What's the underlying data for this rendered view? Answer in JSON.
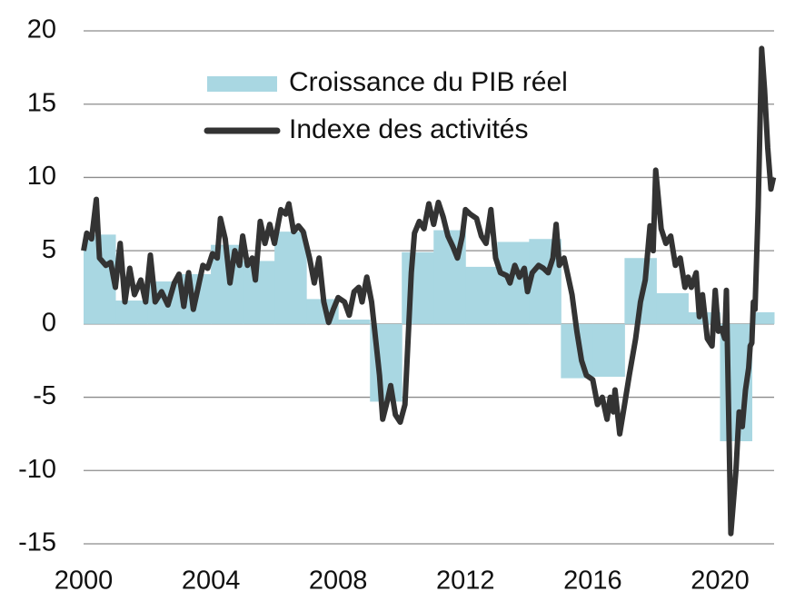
{
  "chart_data": {
    "type": "line",
    "xlim": [
      2000,
      2021.7
    ],
    "xticks": [
      2000,
      2004,
      2008,
      2012,
      2016,
      2020
    ],
    "ylim": [
      -15,
      20
    ],
    "yticks": [
      -15,
      -10,
      -5,
      0,
      5,
      10,
      15,
      20
    ],
    "grid": true,
    "legend": "top-left",
    "series": [
      {
        "name": "Croissance du PIB réel",
        "color": "#a9d7e2",
        "type": "step-area",
        "x": [
          2000,
          2001,
          2002,
          2003,
          2004,
          2005,
          2006,
          2007,
          2008,
          2009,
          2010,
          2011,
          2012,
          2013,
          2014,
          2015,
          2016,
          2017,
          2018,
          2019,
          2020,
          2021
        ],
        "values": [
          6.1,
          1.6,
          2.9,
          3.4,
          5.4,
          4.3,
          6.3,
          1.7,
          0.3,
          -5.3,
          4.9,
          6.4,
          3.9,
          5.6,
          5.8,
          -3.7,
          -3.6,
          4.5,
          2.1,
          0.8,
          -8.0,
          0.8
        ]
      },
      {
        "name": "Indexe des activités",
        "color": "#333333",
        "type": "line",
        "x": [
          2000.0,
          2000.1,
          2000.25,
          2000.4,
          2000.5,
          2000.7,
          2000.85,
          2001.0,
          2001.15,
          2001.3,
          2001.45,
          2001.6,
          2001.8,
          2001.95,
          2002.1,
          2002.25,
          2002.45,
          2002.65,
          2002.85,
          2003.0,
          2003.15,
          2003.3,
          2003.45,
          2003.6,
          2003.75,
          2003.9,
          2004.05,
          2004.2,
          2004.3,
          2004.45,
          2004.6,
          2004.75,
          2004.9,
          2005.0,
          2005.15,
          2005.3,
          2005.4,
          2005.55,
          2005.7,
          2005.85,
          2006.0,
          2006.2,
          2006.35,
          2006.45,
          2006.6,
          2006.75,
          2006.9,
          2007.1,
          2007.25,
          2007.4,
          2007.55,
          2007.7,
          2007.85,
          2008.0,
          2008.2,
          2008.35,
          2008.5,
          2008.65,
          2008.75,
          2008.9,
          2009.05,
          2009.15,
          2009.3,
          2009.4,
          2009.55,
          2009.65,
          2009.8,
          2009.95,
          2010.1,
          2010.2,
          2010.3,
          2010.4,
          2010.55,
          2010.7,
          2010.85,
          2011.0,
          2011.15,
          2011.3,
          2011.45,
          2011.6,
          2011.75,
          2011.9,
          2012.0,
          2012.15,
          2012.35,
          2012.5,
          2012.65,
          2012.8,
          2012.95,
          2013.1,
          2013.3,
          2013.4,
          2013.55,
          2013.7,
          2013.85,
          2013.95,
          2014.1,
          2014.3,
          2014.45,
          2014.6,
          2014.75,
          2014.85,
          2014.95,
          2015.1,
          2015.2,
          2015.35,
          2015.5,
          2015.65,
          2015.8,
          2016.0,
          2016.15,
          2016.3,
          2016.45,
          2016.55,
          2016.65,
          2016.7,
          2016.85,
          2017.0,
          2017.15,
          2017.35,
          2017.5,
          2017.65,
          2017.8,
          2017.9,
          2017.98,
          2018.15,
          2018.3,
          2018.45,
          2018.6,
          2018.75,
          2018.9,
          2019.0,
          2019.1,
          2019.25,
          2019.35,
          2019.45,
          2019.6,
          2019.75,
          2019.85,
          2019.95,
          2020.05,
          2020.15,
          2020.2,
          2020.34,
          2020.5,
          2020.6,
          2020.7,
          2020.8,
          2020.9,
          2020.95,
          2021.0,
          2021.05,
          2021.1,
          2021.2,
          2021.31,
          2021.4,
          2021.5,
          2021.6,
          2021.68
        ],
        "values": [
          5.0,
          6.2,
          5.8,
          8.5,
          4.5,
          4.0,
          4.2,
          2.5,
          5.5,
          1.5,
          3.8,
          2.0,
          3.0,
          1.5,
          4.7,
          1.5,
          2.2,
          1.3,
          2.8,
          3.4,
          1.2,
          3.5,
          1.0,
          2.5,
          4.0,
          3.8,
          4.8,
          4.5,
          7.2,
          5.8,
          2.8,
          5.0,
          4.0,
          6.0,
          4.0,
          4.5,
          3.0,
          7.0,
          5.5,
          6.8,
          5.5,
          7.8,
          7.5,
          8.2,
          6.3,
          6.7,
          6.3,
          4.5,
          2.8,
          4.5,
          1.5,
          0.1,
          1.0,
          1.8,
          1.5,
          0.6,
          2.2,
          2.5,
          1.5,
          3.2,
          1.5,
          -0.5,
          -3.5,
          -6.5,
          -5.2,
          -4.2,
          -6.2,
          -6.7,
          -5.5,
          -1.0,
          3.5,
          6.2,
          7.0,
          6.5,
          8.2,
          6.8,
          8.3,
          7.3,
          6.0,
          5.3,
          4.5,
          6.0,
          7.8,
          7.5,
          7.2,
          6.0,
          5.5,
          7.8,
          4.5,
          3.5,
          3.3,
          2.8,
          4.0,
          3.2,
          3.8,
          2.2,
          3.5,
          4.0,
          3.8,
          3.5,
          4.5,
          6.8,
          4.0,
          4.5,
          3.5,
          2.0,
          -0.5,
          -2.5,
          -3.5,
          -3.8,
          -5.5,
          -5.0,
          -6.5,
          -5.0,
          -6.0,
          -4.5,
          -7.5,
          -5.5,
          -3.5,
          -1.0,
          1.5,
          3.0,
          6.7,
          5.0,
          10.5,
          6.5,
          5.5,
          6.0,
          4.0,
          4.5,
          2.5,
          3.2,
          2.5,
          3.5,
          0.5,
          2.0,
          -1.0,
          -1.5,
          2.3,
          -0.5,
          -0.3,
          -1.0,
          2.3,
          -14.3,
          -10.0,
          -6.0,
          -7.0,
          -4.5,
          -3.0,
          -1.5,
          -1.3,
          1.5,
          1.0,
          8.0,
          18.8,
          16.0,
          12.0,
          9.2,
          10.0
        ]
      }
    ]
  }
}
